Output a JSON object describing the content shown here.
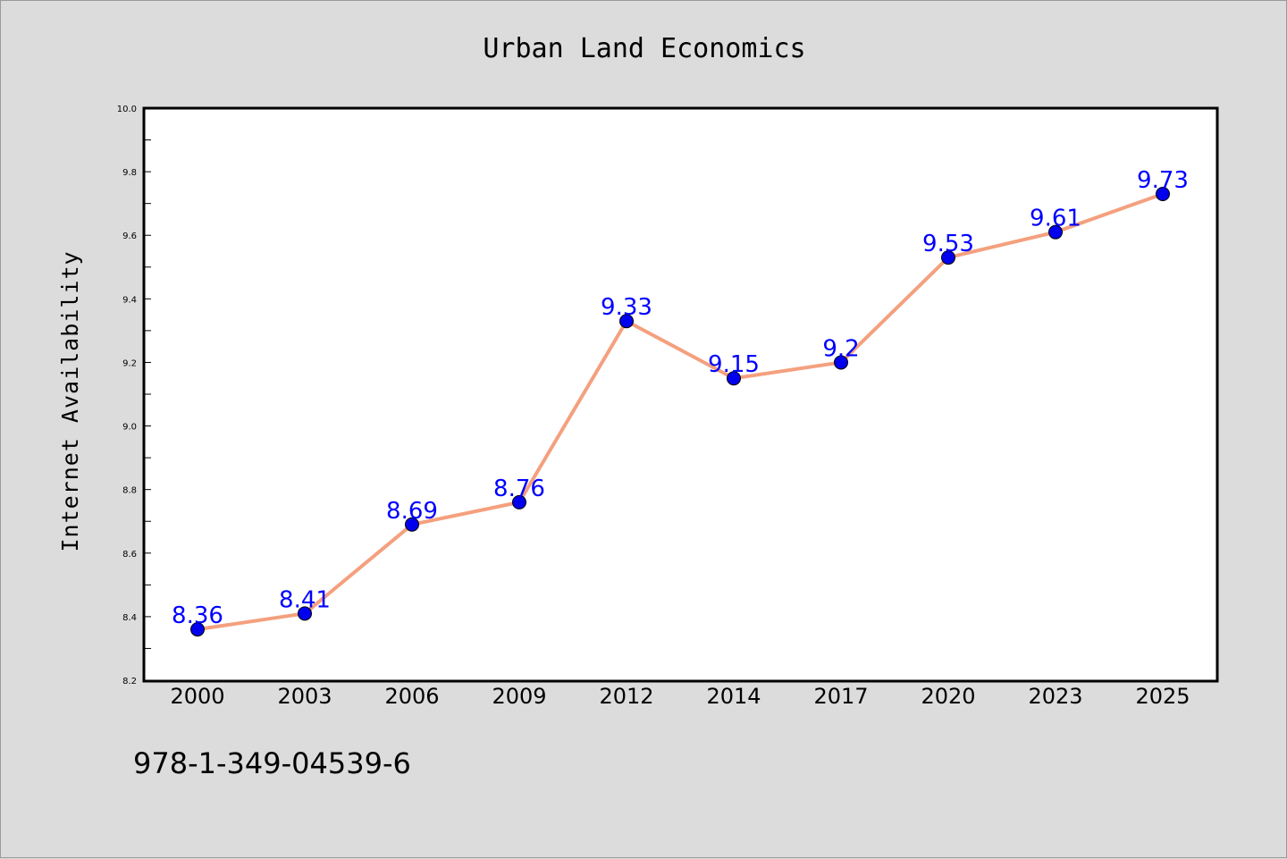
{
  "footer": {
    "isbn": "978-1-349-04539-6"
  },
  "chart_data": {
    "type": "line",
    "title": "Urban Land Economics",
    "xlabel": "",
    "ylabel": "Internet Availability",
    "categories": [
      "2000",
      "2003",
      "2006",
      "2009",
      "2012",
      "2014",
      "2017",
      "2020",
      "2023",
      "2025"
    ],
    "series": [
      {
        "values": [
          8.36,
          8.41,
          8.69,
          8.76,
          9.33,
          9.15,
          9.2,
          9.53,
          9.61,
          9.73
        ],
        "labels": [
          "8.36",
          "8.41",
          "8.69",
          "8.76",
          "9.33",
          "9.15",
          "9.2",
          "9.53",
          "9.61",
          "9.73"
        ],
        "line_color": "#f4a07e",
        "marker_color": "#0000ee"
      }
    ],
    "ylim": [
      8.2,
      10.0
    ],
    "yticks": [
      "8.2",
      "8.4",
      "8.6",
      "8.8",
      "9.0",
      "9.2",
      "9.4",
      "9.6",
      "9.8",
      "10.0"
    ],
    "grid": false,
    "data_labels": true,
    "label_color": "#0000ff",
    "background_color": "#dcdcdc",
    "plot_background_color": "#ffffff"
  }
}
